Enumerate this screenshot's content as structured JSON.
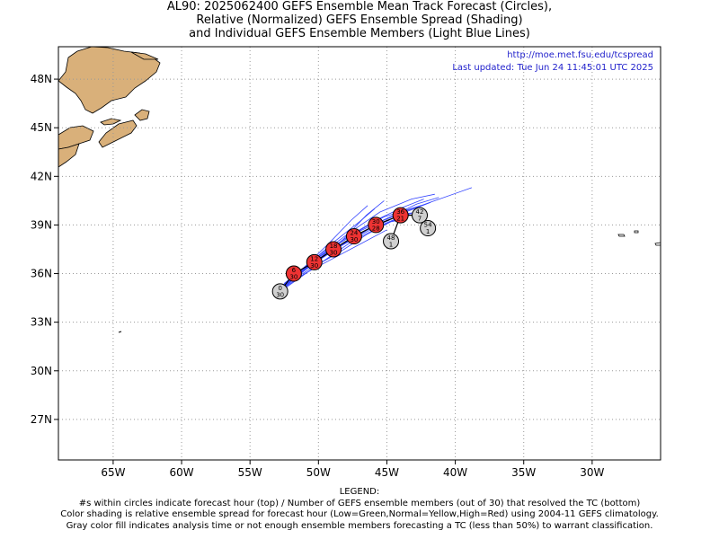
{
  "title": {
    "line1": "AL90: 2025062400 GEFS Ensemble Mean Track Forecast (Circles),",
    "line2": "Relative (Normalized) GEFS Ensemble Spread (Shading)",
    "line3": "and Individual GEFS Ensemble Members (Light Blue Lines)"
  },
  "credit": {
    "url": "http://moe.met.fsu.edu/tcspread",
    "updated": "Last updated: Tue Jun 24 11:45:01 UTC 2025"
  },
  "axes": {
    "lon_labels": [
      "65W",
      "60W",
      "55W",
      "50W",
      "45W",
      "40W",
      "35W",
      "30W"
    ],
    "lat_labels": [
      "48N",
      "45N",
      "42N",
      "39N",
      "36N",
      "33N",
      "30N",
      "27N"
    ]
  },
  "legend": {
    "heading": "LEGEND:",
    "line1": "#s within circles indicate forecast hour (top) / Number of GEFS ensemble members (out of 30) that resolved the TC (bottom)",
    "line2": "Color shading is relative ensemble spread for forecast hour (Low=Green,Normal=Yellow,High=Red) using 2004-11 GEFS climatology.",
    "line3": "Gray color fill indicates analysis time or not enough ensemble members forecasting a TC (less than 50%) to warrant classification."
  },
  "colors": {
    "land": "#d9b07a",
    "member_tracks": "#3344ff",
    "mean_track": "#000000",
    "high_spread": "#ee3333",
    "insufficient": "#d0d0d0",
    "credit_text": "#2222cc"
  },
  "chart_data": {
    "type": "scatter",
    "extent": {
      "lon": [
        -69,
        -25
      ],
      "lat": [
        24.5,
        50
      ]
    },
    "mean_track": [
      {
        "hour": "0",
        "members": "30",
        "lon": -52.8,
        "lat": 34.9,
        "spread": "gray"
      },
      {
        "hour": "6",
        "members": "30",
        "lon": -51.8,
        "lat": 36.0,
        "spread": "red"
      },
      {
        "hour": "12",
        "members": "30",
        "lon": -50.3,
        "lat": 36.7,
        "spread": "red"
      },
      {
        "hour": "18",
        "members": "30",
        "lon": -48.9,
        "lat": 37.5,
        "spread": "red"
      },
      {
        "hour": "24",
        "members": "30",
        "lon": -47.4,
        "lat": 38.3,
        "spread": "red"
      },
      {
        "hour": "30",
        "members": "28",
        "lon": -45.8,
        "lat": 39.0,
        "spread": "red"
      },
      {
        "hour": "36",
        "members": "21",
        "lon": -44.0,
        "lat": 39.6,
        "spread": "red"
      },
      {
        "hour": "42",
        "members": "7",
        "lon": -42.6,
        "lat": 39.6,
        "spread": "gray"
      },
      {
        "hour": "48",
        "members": "1",
        "lon": -44.7,
        "lat": 38.0,
        "spread": "gray"
      },
      {
        "hour": "54",
        "members": "1",
        "lon": -42.0,
        "lat": 38.8,
        "spread": "gray"
      }
    ],
    "member_tracks": [
      [
        [
          -52.8,
          35.0
        ],
        [
          -50.5,
          36.6
        ],
        [
          -48.0,
          37.9
        ],
        [
          -45.5,
          39.2
        ],
        [
          -43.0,
          40.0
        ],
        [
          -41.8,
          40.4
        ]
      ],
      [
        [
          -52.6,
          35.2
        ],
        [
          -50.2,
          36.9
        ],
        [
          -47.8,
          38.3
        ],
        [
          -45.2,
          39.5
        ],
        [
          -42.5,
          40.2
        ]
      ],
      [
        [
          -52.9,
          35.0
        ],
        [
          -50.8,
          36.4
        ],
        [
          -48.6,
          37.6
        ],
        [
          -46.2,
          38.7
        ],
        [
          -44.0,
          39.5
        ],
        [
          -42.2,
          39.8
        ]
      ],
      [
        [
          -52.5,
          35.4
        ],
        [
          -50.0,
          37.1
        ],
        [
          -47.6,
          38.6
        ],
        [
          -45.5,
          39.8
        ],
        [
          -43.2,
          40.6
        ],
        [
          -41.5,
          40.9
        ]
      ],
      [
        [
          -52.8,
          35.1
        ],
        [
          -50.6,
          36.3
        ],
        [
          -48.5,
          37.3
        ],
        [
          -46.5,
          38.4
        ],
        [
          -44.7,
          39.2
        ],
        [
          -43.5,
          39.4
        ]
      ],
      [
        [
          -52.7,
          35.0
        ],
        [
          -50.3,
          36.7
        ],
        [
          -48.2,
          38.1
        ],
        [
          -46.5,
          39.6
        ],
        [
          -45.2,
          40.5
        ]
      ],
      [
        [
          -52.6,
          35.3
        ],
        [
          -50.0,
          37.0
        ],
        [
          -47.3,
          38.5
        ],
        [
          -44.5,
          39.6
        ],
        [
          -41.5,
          40.5
        ],
        [
          -38.8,
          41.3
        ]
      ],
      [
        [
          -52.9,
          34.9
        ],
        [
          -51.0,
          36.0
        ],
        [
          -49.0,
          36.9
        ],
        [
          -47.0,
          37.8
        ],
        [
          -45.0,
          38.7
        ]
      ],
      [
        [
          -52.8,
          35.0
        ],
        [
          -50.9,
          36.5
        ],
        [
          -49.2,
          37.9
        ],
        [
          -47.6,
          39.3
        ],
        [
          -46.4,
          40.2
        ]
      ],
      [
        [
          -52.7,
          35.2
        ],
        [
          -50.4,
          36.8
        ],
        [
          -48.0,
          38.2
        ],
        [
          -45.8,
          39.3
        ],
        [
          -43.8,
          40.1
        ],
        [
          -42.3,
          40.6
        ]
      ],
      [
        [
          -52.6,
          35.0
        ],
        [
          -50.1,
          36.5
        ],
        [
          -47.7,
          37.9
        ],
        [
          -45.3,
          39.0
        ],
        [
          -43.0,
          39.8
        ]
      ],
      [
        [
          -52.9,
          35.1
        ],
        [
          -51.2,
          36.2
        ],
        [
          -49.5,
          37.1
        ],
        [
          -47.8,
          38.0
        ],
        [
          -46.2,
          38.8
        ],
        [
          -44.8,
          39.3
        ]
      ],
      [
        [
          -52.7,
          35.0
        ],
        [
          -50.7,
          36.6
        ],
        [
          -48.8,
          38.0
        ],
        [
          -47.0,
          39.2
        ],
        [
          -45.9,
          40.0
        ]
      ],
      [
        [
          -52.5,
          35.3
        ],
        [
          -50.0,
          36.8
        ],
        [
          -47.5,
          38.2
        ],
        [
          -45.0,
          39.4
        ],
        [
          -42.8,
          40.3
        ],
        [
          -41.2,
          40.7
        ]
      ],
      [
        [
          -52.8,
          35.0
        ],
        [
          -50.6,
          36.5
        ],
        [
          -48.3,
          37.8
        ],
        [
          -46.0,
          38.9
        ],
        [
          -43.7,
          39.7
        ],
        [
          -42.3,
          39.8
        ]
      ]
    ]
  }
}
